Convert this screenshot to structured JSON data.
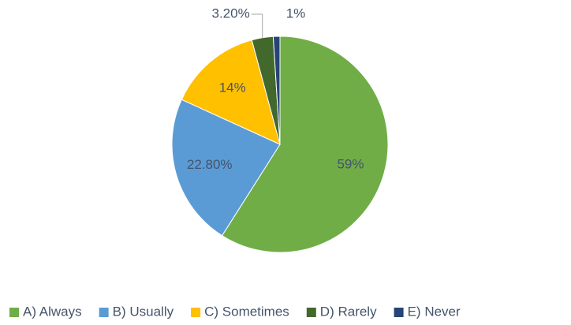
{
  "chart_data": {
    "type": "pie",
    "categories": [
      "A) Always",
      "B) Usually",
      "C) Sometimes",
      "D) Rarely",
      "E) Never"
    ],
    "values": [
      59,
      22.8,
      14,
      3.2,
      1
    ],
    "value_labels": [
      "59%",
      "22.80%",
      "14%",
      "3.20%",
      "1%"
    ],
    "colors": [
      "#70ad47",
      "#5b9bd5",
      "#ffc000",
      "#43682b",
      "#264478"
    ],
    "legend": "bottom"
  }
}
